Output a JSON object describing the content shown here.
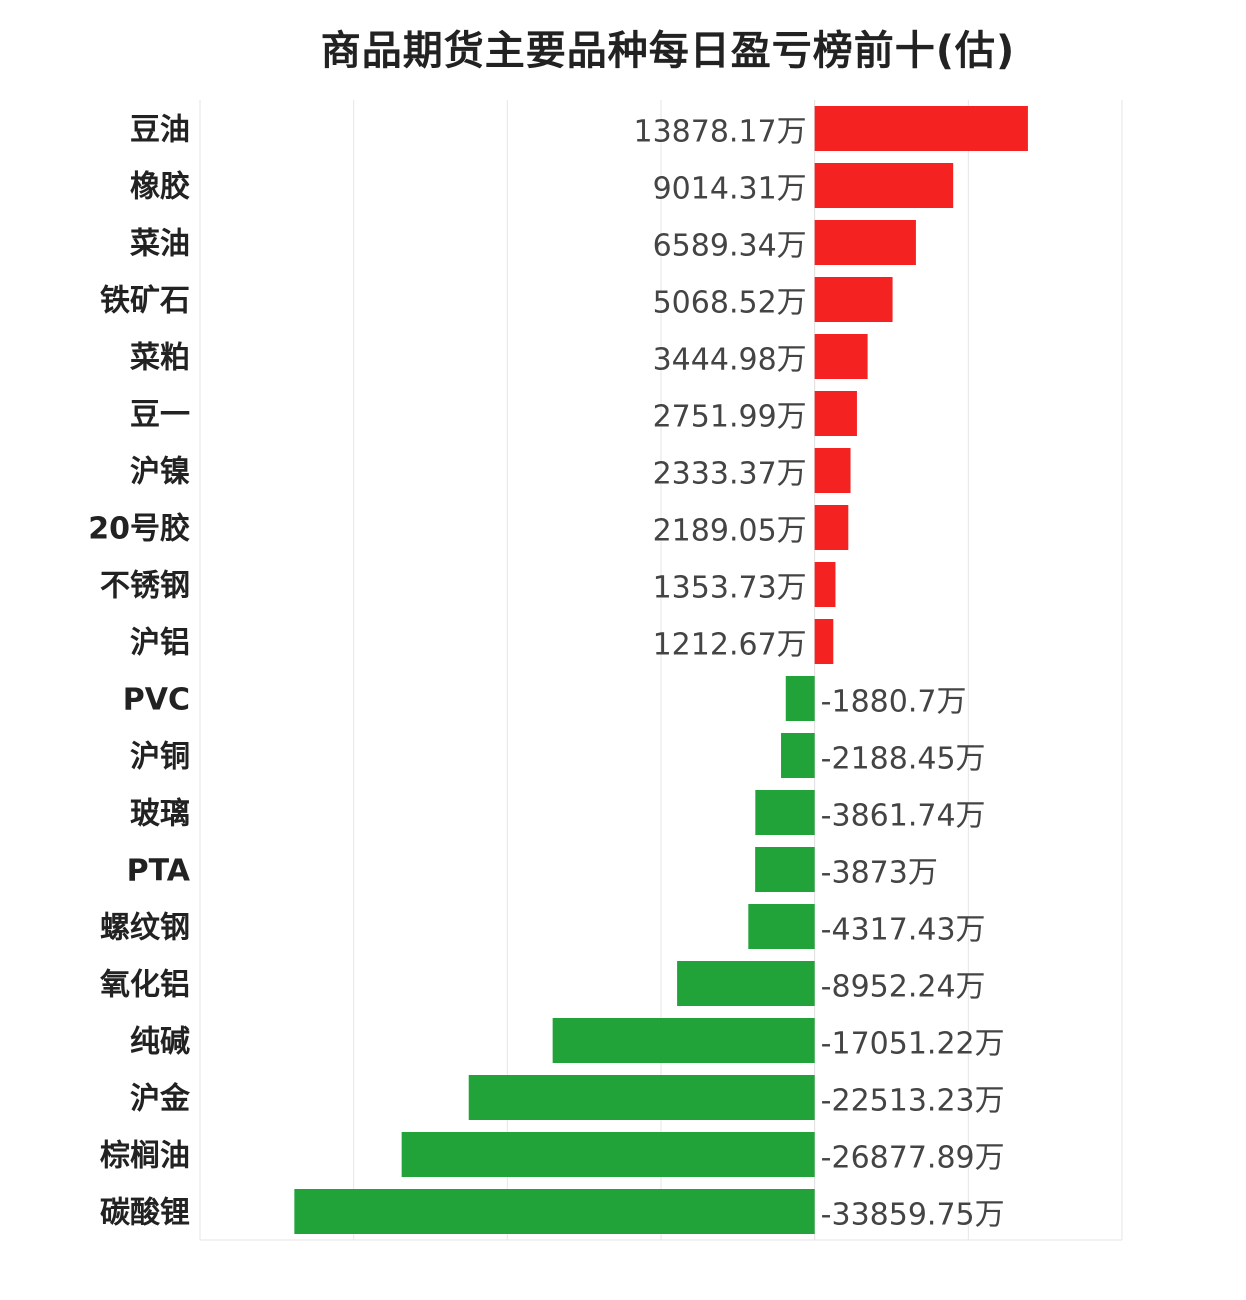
{
  "chart_data": {
    "type": "bar",
    "orientation": "horizontal",
    "title": "商品期货主要品种每日盈亏榜前十(估)",
    "unit_suffix": "万",
    "xlabel": "",
    "ylabel": "",
    "xlim": [
      -40000,
      20000
    ],
    "grid": true,
    "colors": {
      "positive": "#f52222",
      "negative": "#21a33a",
      "grid": "#e6e6e6",
      "zero_line": "#dddddd"
    },
    "categories": [
      "豆油",
      "橡胶",
      "菜油",
      "铁矿石",
      "菜粕",
      "豆一",
      "沪镍",
      "20号胶",
      "不锈钢",
      "沪铝",
      "PVC",
      "沪铜",
      "玻璃",
      "PTA",
      "螺纹钢",
      "氧化铝",
      "纯碱",
      "沪金",
      "棕榈油",
      "碳酸锂"
    ],
    "values": [
      13878.17,
      9014.31,
      6589.34,
      5068.52,
      3444.98,
      2751.99,
      2333.37,
      2189.05,
      1353.73,
      1212.67,
      -1880.7,
      -2188.45,
      -3861.74,
      -3873,
      -4317.43,
      -8952.24,
      -17051.22,
      -22513.23,
      -26877.89,
      -33859.75
    ],
    "value_labels": [
      "13878.17万",
      "9014.31万",
      "6589.34万",
      "5068.52万",
      "3444.98万",
      "2751.99万",
      "2333.37万",
      "2189.05万",
      "1353.73万",
      "1212.67万",
      "-1880.7万",
      "-2188.45万",
      "-3861.74万",
      "-3873万",
      "-4317.43万",
      "-8952.24万",
      "-17051.22万",
      "-22513.23万",
      "-26877.89万",
      "-33859.75万"
    ]
  }
}
